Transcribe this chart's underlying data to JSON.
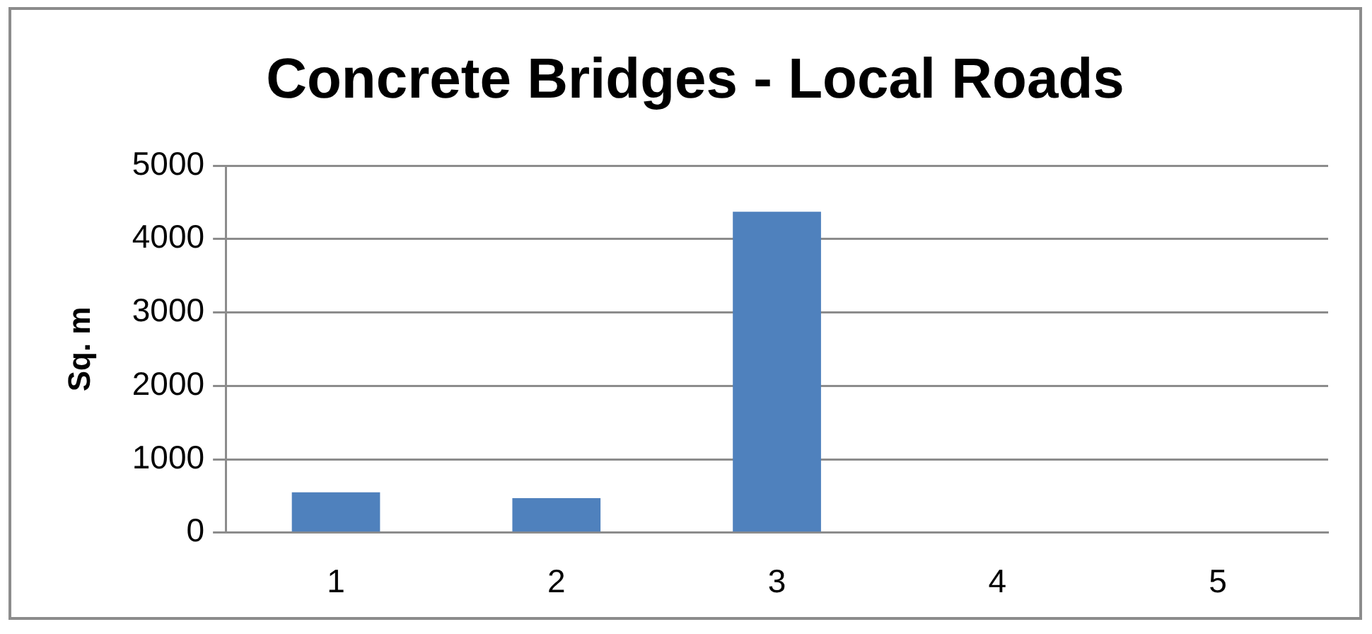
{
  "chart_data": {
    "type": "bar",
    "title": "Concrete Bridges - Local Roads",
    "ylabel": "Sq. m",
    "categories": [
      "1",
      "2",
      "3",
      "4",
      "5"
    ],
    "values": [
      550,
      470,
      4370,
      0,
      0
    ],
    "color": "#4f81bd",
    "ylim": [
      0,
      5000
    ],
    "yticks": [
      0,
      1000,
      2000,
      3000,
      4000,
      5000
    ],
    "grid": "y"
  }
}
